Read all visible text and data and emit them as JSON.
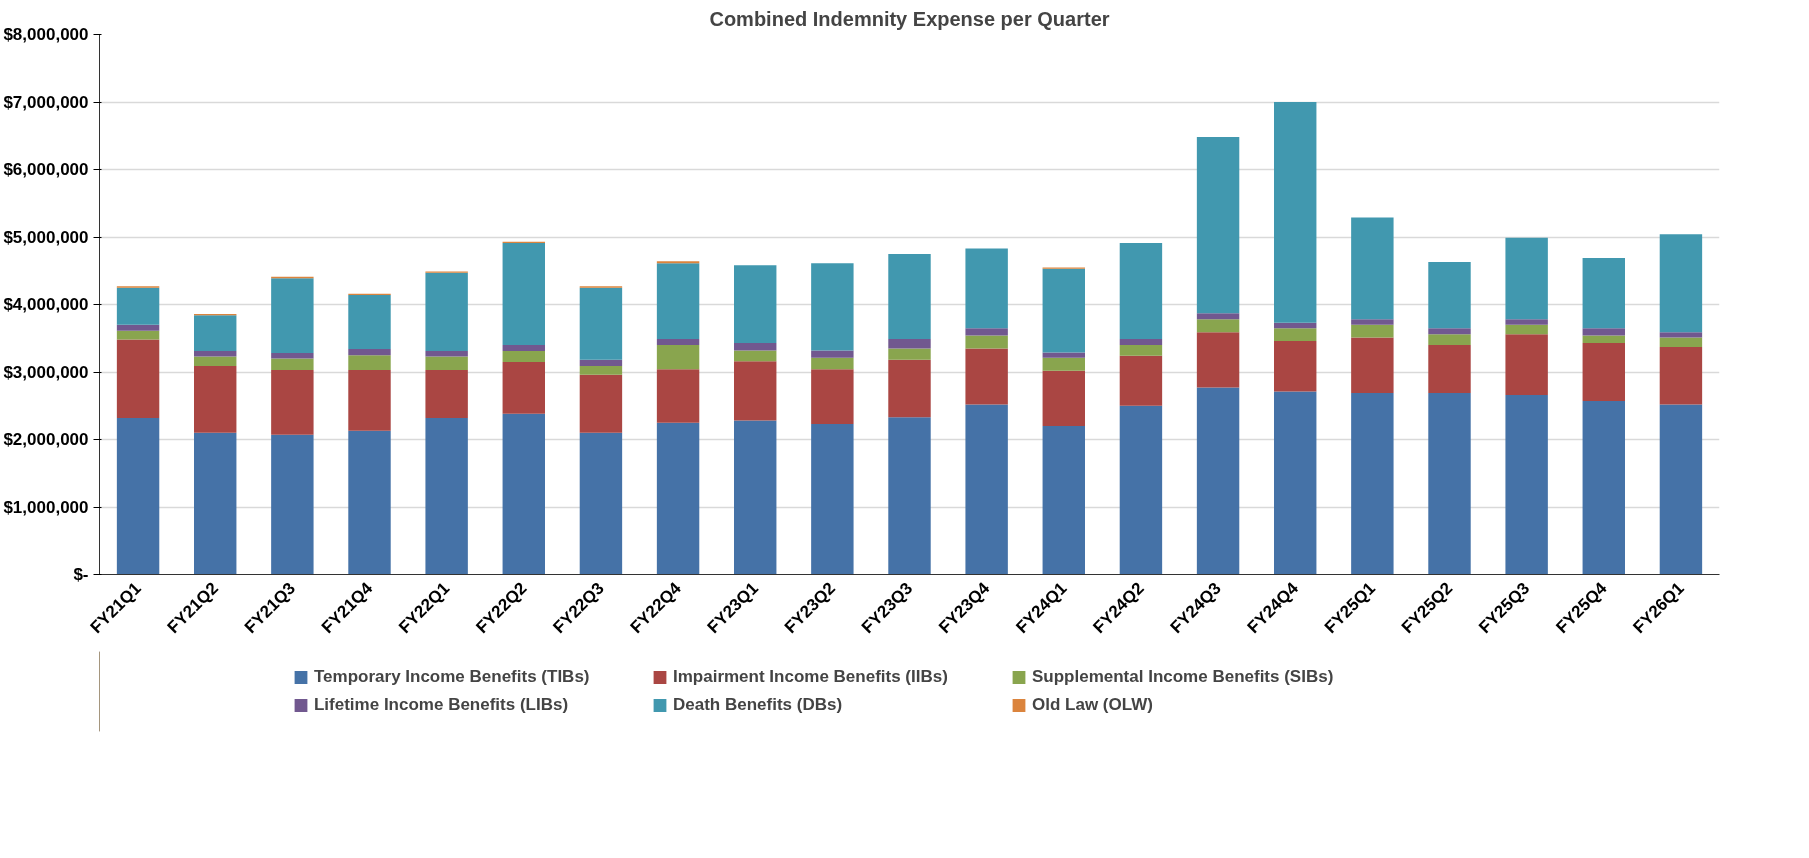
{
  "chart_data": {
    "type": "bar",
    "title": "Combined Indemnity Expense per Quarter",
    "stacked": true,
    "categories": [
      "FY21Q1",
      "FY21Q2",
      "FY21Q3",
      "FY21Q4",
      "FY22Q1",
      "FY22Q2",
      "FY22Q3",
      "FY22Q4",
      "FY23Q1",
      "FY23Q2",
      "FY23Q3",
      "FY23Q4",
      "FY24Q1",
      "FY24Q2",
      "FY24Q3",
      "FY24Q4",
      "FY25Q1",
      "FY25Q2",
      "FY25Q3",
      "FY25Q4",
      "FY26Q1"
    ],
    "series": [
      {
        "name": "Temporary Income Benefits (TIBs)",
        "color": "#4572a7",
        "values": [
          2320000,
          2100000,
          2070000,
          2130000,
          2320000,
          2380000,
          2100000,
          2250000,
          2280000,
          2230000,
          2330000,
          2520000,
          2200000,
          2500000,
          2770000,
          2710000,
          2690000,
          2690000,
          2660000,
          2570000,
          2520000
        ]
      },
      {
        "name": "Impairment Income Benefits (IIBs)",
        "color": "#aa4643",
        "values": [
          1160000,
          990000,
          960000,
          900000,
          710000,
          770000,
          860000,
          790000,
          880000,
          810000,
          850000,
          830000,
          820000,
          740000,
          820000,
          750000,
          820000,
          710000,
          900000,
          860000,
          850000
        ]
      },
      {
        "name": "Supplemental Income Benefits (SIBs)",
        "color": "#89a54e",
        "values": [
          130000,
          140000,
          170000,
          220000,
          200000,
          160000,
          130000,
          360000,
          160000,
          170000,
          170000,
          190000,
          190000,
          160000,
          190000,
          190000,
          190000,
          160000,
          140000,
          110000,
          140000
        ]
      },
      {
        "name": "Lifetime Income Benefits (LIBs)",
        "color": "#71588f",
        "values": [
          90000,
          80000,
          80000,
          90000,
          80000,
          90000,
          90000,
          90000,
          110000,
          110000,
          140000,
          110000,
          80000,
          90000,
          90000,
          80000,
          80000,
          90000,
          80000,
          110000,
          80000
        ]
      },
      {
        "name": "Death Benefits (DBs)",
        "color": "#4198af",
        "values": [
          550000,
          530000,
          1110000,
          800000,
          1160000,
          1510000,
          1070000,
          1120000,
          1150000,
          1290000,
          1260000,
          1180000,
          1240000,
          1420000,
          2610000,
          3270000,
          1510000,
          980000,
          1210000,
          1040000,
          1450000
        ]
      },
      {
        "name": "Old Law (OLW)",
        "color": "#db843d",
        "values": [
          20000,
          20000,
          20000,
          20000,
          20000,
          20000,
          20000,
          30000,
          0,
          0,
          0,
          0,
          20000,
          0,
          0,
          0,
          0,
          0,
          0,
          0,
          0
        ]
      }
    ],
    "ylim": [
      0,
      8000000
    ],
    "yticks": [
      {
        "value": 0,
        "label": "$-"
      },
      {
        "value": 1000000,
        "label": "$1,000,000"
      },
      {
        "value": 2000000,
        "label": "$2,000,000"
      },
      {
        "value": 3000000,
        "label": "$3,000,000"
      },
      {
        "value": 4000000,
        "label": "$4,000,000"
      },
      {
        "value": 5000000,
        "label": "$5,000,000"
      },
      {
        "value": 6000000,
        "label": "$6,000,000"
      },
      {
        "value": 7000000,
        "label": "$7,000,000"
      },
      {
        "value": 8000000,
        "label": "$8,000,000"
      }
    ],
    "grid": "y",
    "legend": "bottom"
  }
}
